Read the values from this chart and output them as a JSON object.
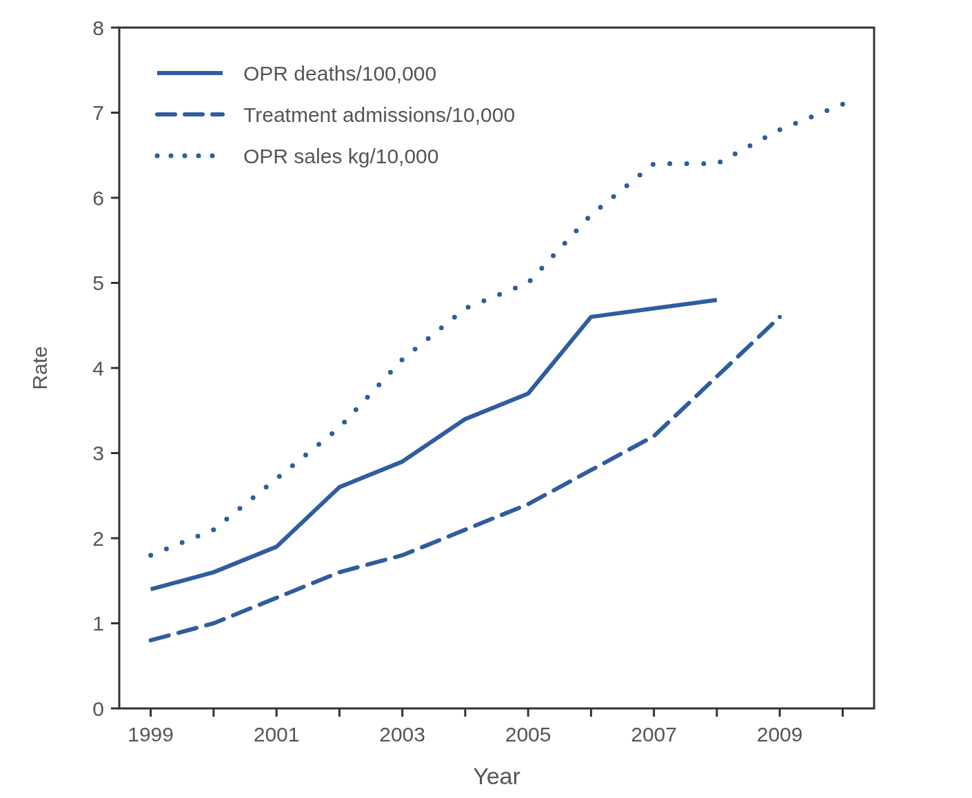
{
  "chart_data": {
    "type": "line",
    "xlabel": "Year",
    "ylabel": "Rate",
    "x": [
      1999,
      2000,
      2001,
      2002,
      2003,
      2004,
      2005,
      2006,
      2007,
      2008,
      2009,
      2010
    ],
    "xlim": [
      1998.5,
      2010.5
    ],
    "xticks": [
      1999,
      {
        "value": 2000,
        "label": null
      },
      2001,
      {
        "value": 2002,
        "label": null
      },
      2003,
      {
        "value": 2004,
        "label": null
      },
      2005,
      {
        "value": 2006,
        "label": null
      },
      2007,
      {
        "value": 2008,
        "label": null
      },
      2009,
      {
        "value": 2010,
        "label": null
      }
    ],
    "ylim": [
      0,
      8
    ],
    "yticks": [
      0,
      1,
      2,
      3,
      4,
      5,
      6,
      7,
      8
    ],
    "grid": false,
    "legend": "top left",
    "marker": "none",
    "series": [
      {
        "name": "OPR deaths/100,000",
        "color": "#2f5d9e",
        "line_style": "solid",
        "values": [
          1.4,
          1.6,
          1.9,
          2.6,
          2.9,
          3.4,
          3.7,
          4.6,
          4.7,
          4.8,
          null,
          null
        ]
      },
      {
        "name": "Treatment admissions/10,000",
        "color": "#2f5d9e",
        "line_style": "dashed",
        "values": [
          0.8,
          1.0,
          1.3,
          1.6,
          1.8,
          2.1,
          2.4,
          2.8,
          3.2,
          3.9,
          4.6,
          null
        ]
      },
      {
        "name": "OPR sales kg/10,000",
        "color": "#2f5d9e",
        "line_style": "dotted",
        "values": [
          1.8,
          2.1,
          2.7,
          3.3,
          4.1,
          4.7,
          5.0,
          5.8,
          6.4,
          6.4,
          6.8,
          7.1
        ]
      }
    ]
  }
}
